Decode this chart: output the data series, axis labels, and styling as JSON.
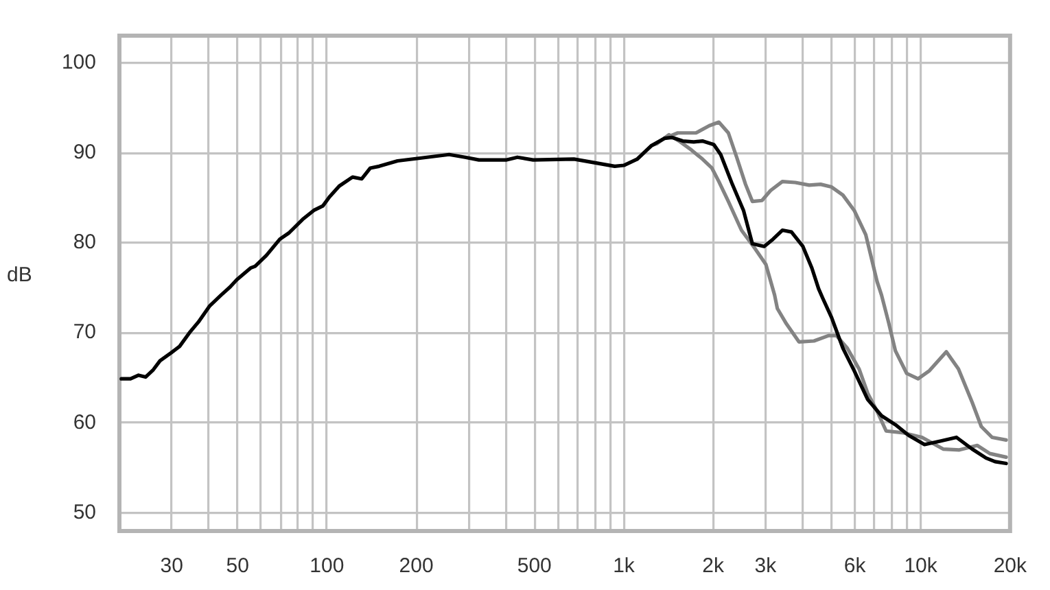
{
  "chart_data": {
    "type": "line",
    "ylabel": "dB",
    "log": "x",
    "grid": true,
    "xlim": [
      20,
      20000
    ],
    "ylim": [
      48,
      103
    ],
    "xticks": [
      30,
      {
        "value": 40,
        "label": null
      },
      50,
      {
        "value": 60,
        "label": null
      },
      {
        "value": 70,
        "label": null
      },
      {
        "value": 80,
        "label": null
      },
      {
        "value": 90,
        "label": null
      },
      100,
      200,
      {
        "value": 300,
        "label": null
      },
      {
        "value": 400,
        "label": null
      },
      500,
      {
        "value": 600,
        "label": null
      },
      {
        "value": 700,
        "label": null
      },
      {
        "value": 800,
        "label": null
      },
      {
        "value": 900,
        "label": null
      },
      {
        "value": 1000,
        "label": "1k"
      },
      {
        "value": 2000,
        "label": "2k"
      },
      {
        "value": 3000,
        "label": "3k"
      },
      {
        "value": 4000,
        "label": null
      },
      {
        "value": 5000,
        "label": null
      },
      {
        "value": 6000,
        "label": "6k"
      },
      {
        "value": 7000,
        "label": null
      },
      {
        "value": 8000,
        "label": null
      },
      {
        "value": 9000,
        "label": null
      },
      {
        "value": 10000,
        "label": "10k"
      },
      {
        "value": 20000,
        "label": "20k"
      }
    ],
    "yticks": [
      50,
      60,
      70,
      80,
      90,
      100
    ],
    "series": [
      {
        "color": "#000000",
        "x": [
          20.3,
          21.8,
          23.2,
          24.5,
          26,
          27.4,
          29.9,
          31.9,
          34.4,
          36.9,
          40.3,
          44,
          47.2,
          49.7,
          55.3,
          57.3,
          62.5,
          69.4,
          74.5,
          82.8,
          90.3,
          96.9,
          102,
          110,
          122,
          131,
          140,
          150,
          173,
          206,
          258,
          292,
          325,
          401,
          438,
          495,
          679,
          796,
          932,
          1000,
          1110,
          1240,
          1370,
          1450,
          1580,
          1720,
          1840,
          2010,
          2120,
          2320,
          2530,
          2710,
          2970,
          3180,
          3420,
          3670,
          4010,
          4300,
          4530,
          4670,
          5010,
          5470,
          5970,
          6630,
          7380,
          8220,
          9120,
          10300,
          11700,
          13200,
          14900,
          16600,
          17800,
          19400
        ],
        "values": [
          64.9,
          64.9,
          65.3,
          65.1,
          65.9,
          66.9,
          67.8,
          68.5,
          70.0,
          71.2,
          73.0,
          74.2,
          75.1,
          75.9,
          77.2,
          77.4,
          78.6,
          80.4,
          81.1,
          82.6,
          83.6,
          84.1,
          85.1,
          86.3,
          87.3,
          87.1,
          88.3,
          88.5,
          89.1,
          89.4,
          89.8,
          89.5,
          89.2,
          89.2,
          89.5,
          89.2,
          89.3,
          88.9,
          88.5,
          88.6,
          89.3,
          90.8,
          91.6,
          91.7,
          91.3,
          91.2,
          91.3,
          90.9,
          89.8,
          86.5,
          83.6,
          79.9,
          79.6,
          80.4,
          81.4,
          81.2,
          79.6,
          77.2,
          74.9,
          73.9,
          71.7,
          68.3,
          65.8,
          62.6,
          60.8,
          59.8,
          58.6,
          57.6,
          58.0,
          58.4,
          57.1,
          56.1,
          55.7,
          55.5
        ]
      },
      {
        "color": "#838383",
        "x": [
          1110,
          1240,
          1370,
          1520,
          1750,
          1940,
          2090,
          2250,
          2400,
          2570,
          2710,
          2920,
          3120,
          3420,
          3780,
          4210,
          4600,
          5010,
          5470,
          5970,
          6530,
          7130,
          7380,
          7790,
          8220,
          8970,
          9800,
          10700,
          12200,
          13400,
          14900,
          16000,
          17400,
          19400
        ],
        "values": [
          89.3,
          90.8,
          91.6,
          92.2,
          92.2,
          93.0,
          93.4,
          92.2,
          89.5,
          86.5,
          84.6,
          84.7,
          85.8,
          86.8,
          86.7,
          86.4,
          86.5,
          86.2,
          85.3,
          83.6,
          80.9,
          75.7,
          74.2,
          71.2,
          68.0,
          65.5,
          64.9,
          65.8,
          67.9,
          66.0,
          62.3,
          59.6,
          58.4,
          58.1
        ]
      },
      {
        "color": "#838383",
        "x": [
          1240,
          1290,
          1420,
          1550,
          1690,
          1840,
          1980,
          2090,
          2250,
          2490,
          2760,
          3010,
          3220,
          3290,
          3530,
          3890,
          4370,
          4900,
          5200,
          5660,
          6200,
          6630,
          7130,
          7650,
          8750,
          10100,
          11900,
          13500,
          15500,
          17100,
          19400
        ],
        "values": [
          90.8,
          91.0,
          92.0,
          91.2,
          90.3,
          89.3,
          88.3,
          86.8,
          84.6,
          81.4,
          79.4,
          77.6,
          74.2,
          72.7,
          71.0,
          69.0,
          69.1,
          69.7,
          69.7,
          68.3,
          66.0,
          63.3,
          61.3,
          59.1,
          58.9,
          58.4,
          57.1,
          57.0,
          57.5,
          56.6,
          56.2
        ]
      }
    ]
  }
}
